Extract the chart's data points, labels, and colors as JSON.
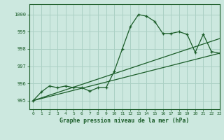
{
  "title": "Graphe pression niveau de la mer (hPa)",
  "background_color": "#cce8df",
  "grid_color": "#aad0c4",
  "line_color": "#1a5c28",
  "xlim": [
    -0.5,
    23
  ],
  "ylim": [
    994.5,
    1000.6
  ],
  "yticks": [
    995,
    996,
    997,
    998,
    999,
    1000
  ],
  "xticks": [
    0,
    1,
    2,
    3,
    4,
    5,
    6,
    7,
    8,
    9,
    10,
    11,
    12,
    13,
    14,
    15,
    16,
    17,
    18,
    19,
    20,
    21,
    22,
    23
  ],
  "series1_x": [
    0,
    1,
    2,
    3,
    4,
    5,
    6,
    7,
    8,
    9,
    10,
    11,
    12,
    13,
    14,
    15,
    16,
    17,
    18,
    19,
    20,
    21,
    22,
    23
  ],
  "series1_y": [
    995.0,
    995.5,
    995.85,
    995.75,
    995.85,
    995.75,
    995.75,
    995.55,
    995.75,
    995.75,
    996.7,
    998.0,
    999.3,
    1000.0,
    999.9,
    999.6,
    998.9,
    998.9,
    999.0,
    998.85,
    997.8,
    998.85,
    997.85,
    997.75
  ],
  "series2_x": [
    0,
    23
  ],
  "series2_y": [
    995.0,
    997.75
  ],
  "series3_x": [
    0,
    23
  ],
  "series3_y": [
    995.0,
    998.6
  ]
}
